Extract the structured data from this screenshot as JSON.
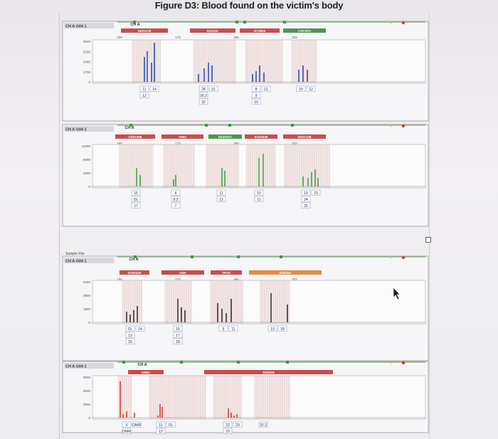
{
  "figure_title": "Figure D3: Blood found on the victim's body",
  "panels": [
    {
      "id": "panel-1",
      "sample_label": "CH A G04 1 ",
      "dye_label": "CH A",
      "yaxis": [
        "9000",
        "6100",
        "3400",
        "1700",
        "0"
      ],
      "markers": [
        "D8S1179",
        "D21S11",
        "D7S820",
        "CSF1PO"
      ],
      "size_ticks": [
        "100",
        "172",
        "265",
        "322"
      ],
      "allele_labels": [
        {
          "lines": [
            "11",
            "12"
          ],
          "second": "14"
        },
        {
          "lines": [
            "28",
            "30.2",
            "32"
          ],
          "second": "31"
        },
        {
          "lines": [
            "8",
            "9",
            "10"
          ],
          "second": "12"
        },
        {
          "lines": [
            "10"
          ],
          "second": "12"
        }
      ]
    },
    {
      "id": "panel-2",
      "sample_label": "CH A G04 1 ",
      "dye_label": "CH A",
      "yaxis": [
        "12000",
        "8000",
        "4000",
        "0"
      ],
      "markers": [
        "D3S1358",
        "TH01",
        "D13S317",
        "D16S539",
        "D2S1338"
      ],
      "size_ticks": [
        "100",
        "172",
        "265",
        "322"
      ],
      "allele_labels": [
        {
          "lines": [
            "15",
            "OL",
            "17"
          ]
        },
        {
          "lines": [
            "6",
            "9.3",
            "7"
          ]
        },
        {
          "lines": [
            "11",
            "12"
          ]
        },
        {
          "lines": [
            "10",
            "11"
          ]
        },
        {
          "lines": [
            "19",
            "24",
            "25"
          ],
          "second": "23"
        }
      ]
    },
    {
      "id": "panel-3",
      "sample_label": "CH A G04 1 ",
      "header_small": "Sample File",
      "dye_label": "CH A",
      "yaxis": [
        "5400",
        "3600",
        "1800",
        "0"
      ],
      "markers": [
        "D19S433",
        "vWA",
        "TPOX",
        "D18S51"
      ],
      "size_ticks": [
        "100",
        "172",
        "265",
        "322"
      ],
      "allele_labels": [
        {
          "lines": [
            "OL",
            "13",
            "15"
          ],
          "second": "14"
        },
        {
          "lines": [
            "16",
            "17",
            "18"
          ]
        },
        {
          "lines": [
            "9"
          ],
          "second": "11"
        },
        {
          "lines": [
            "13"
          ],
          "second": "18"
        }
      ]
    },
    {
      "id": "panel-4",
      "sample_label": "CH A G04 1 ",
      "dye_label": "CH A",
      "yaxis": [
        "9000",
        "6000",
        "3000",
        "0"
      ],
      "markers": [
        "AMEL",
        "D5S818",
        "FGA"
      ],
      "size_ticks": [
        "100",
        "172",
        "265",
        "322"
      ],
      "allele_labels": [
        {
          "lines": [
            "X",
            "OMR"
          ],
          "second": "OMR"
        },
        {
          "lines": [
            "11",
            "12"
          ],
          "second": "OL"
        },
        {
          "lines": [
            "22",
            "23"
          ],
          "second": "23"
        },
        {
          "lines": [
            "32.2"
          ]
        }
      ]
    }
  ],
  "colors": {
    "marker_red": "#cc3a3a",
    "marker_green": "#3f9a3f",
    "marker_orange": "#e0802f",
    "peak_blue": "#2a4fb8",
    "peak_green": "#3fa64a",
    "peak_black": "#333333",
    "peak_red": "#d23a30",
    "bin_shade": "#e8c9c6"
  }
}
